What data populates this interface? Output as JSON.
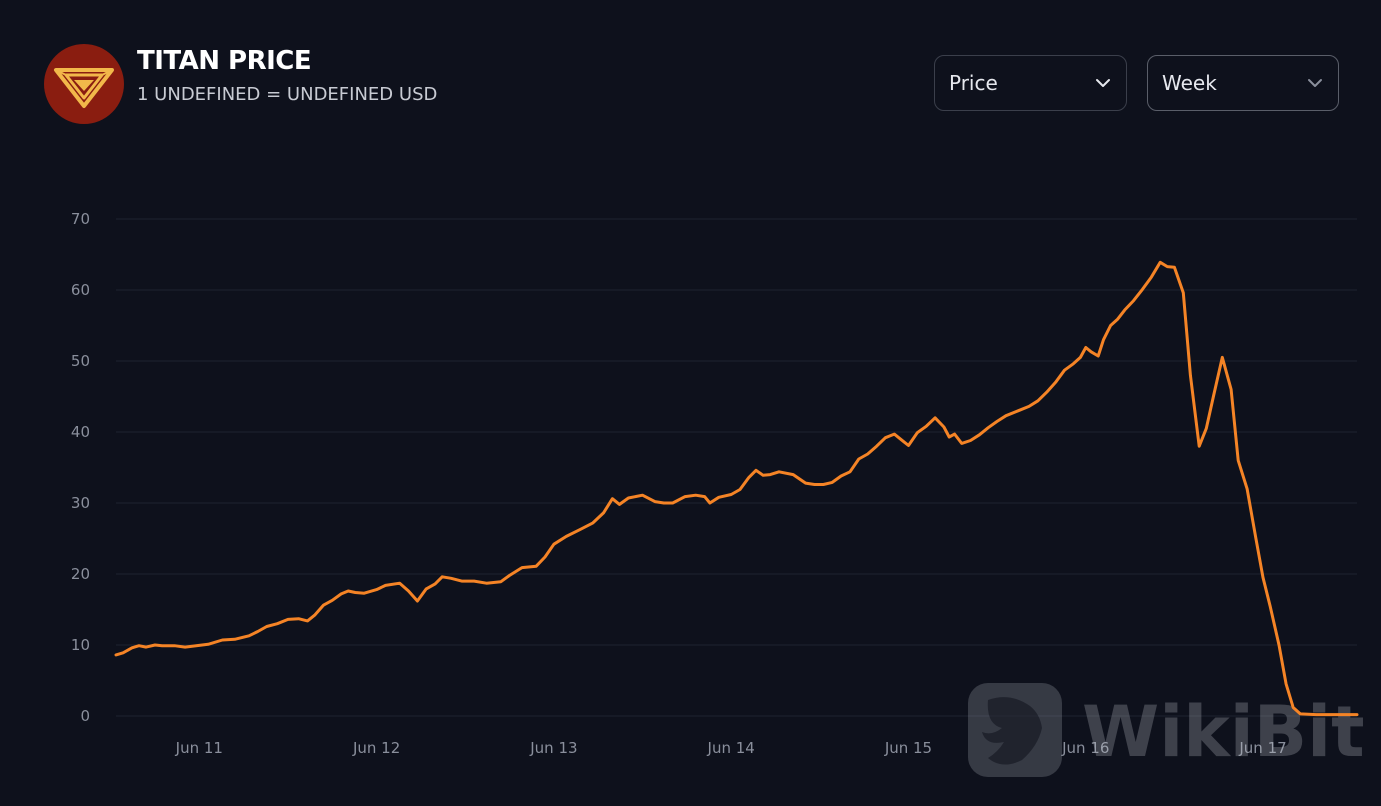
{
  "header": {
    "title": "TITAN PRICE",
    "subtitle": "1 UNDEFINED = UNDEFINED USD",
    "logo_icon": "titan-diamond-logo",
    "logo_bg": "#8a1d10",
    "logo_fg": "#f2b84a"
  },
  "controls": {
    "metric_select": {
      "label": "Price",
      "icon": "chevron-down-icon"
    },
    "range_select": {
      "label": "Week",
      "icon": "chevron-down-icon"
    }
  },
  "watermark": {
    "text": "WikiBit",
    "icon": "wikibit-eagle-icon"
  },
  "colors": {
    "background": "#0e111c",
    "line": "#f58426",
    "grid": "#1e2230",
    "tick_text": "#8a8f9c"
  },
  "chart_data": {
    "type": "line",
    "title": "",
    "xlabel": "",
    "ylabel": "",
    "ylim": [
      0,
      70
    ],
    "xlim": [
      10.53,
      17.53
    ],
    "yticks": [
      0,
      10,
      20,
      30,
      40,
      50,
      60,
      70
    ],
    "xticks": [
      {
        "label": "Jun 11",
        "value": 11
      },
      {
        "label": "Jun 12",
        "value": 12
      },
      {
        "label": "Jun 13",
        "value": 13
      },
      {
        "label": "Jun 14",
        "value": 14
      },
      {
        "label": "Jun 15",
        "value": 15
      },
      {
        "label": "Jun 16",
        "value": 16
      },
      {
        "label": "Jun 17",
        "value": 17
      }
    ],
    "grid": true,
    "series": [
      {
        "name": "",
        "color": "#f58426",
        "points": [
          [
            10.53,
            8.6
          ],
          [
            10.57,
            8.9
          ],
          [
            10.62,
            9.6
          ],
          [
            10.66,
            9.9
          ],
          [
            10.7,
            9.7
          ],
          [
            10.75,
            10.0
          ],
          [
            10.79,
            9.9
          ],
          [
            10.86,
            9.9
          ],
          [
            10.92,
            9.7
          ],
          [
            11.05,
            10.1
          ],
          [
            11.13,
            10.7
          ],
          [
            11.2,
            10.8
          ],
          [
            11.28,
            11.3
          ],
          [
            11.33,
            11.9
          ],
          [
            11.38,
            12.6
          ],
          [
            11.44,
            13.0
          ],
          [
            11.5,
            13.6
          ],
          [
            11.56,
            13.7
          ],
          [
            11.61,
            13.4
          ],
          [
            11.65,
            14.2
          ],
          [
            11.7,
            15.6
          ],
          [
            11.75,
            16.3
          ],
          [
            11.8,
            17.2
          ],
          [
            11.84,
            17.6
          ],
          [
            11.88,
            17.4
          ],
          [
            11.93,
            17.3
          ],
          [
            12.0,
            17.8
          ],
          [
            12.05,
            18.4
          ],
          [
            12.13,
            18.7
          ],
          [
            12.18,
            17.6
          ],
          [
            12.23,
            16.2
          ],
          [
            12.28,
            17.9
          ],
          [
            12.33,
            18.6
          ],
          [
            12.37,
            19.6
          ],
          [
            12.42,
            19.4
          ],
          [
            12.48,
            19.0
          ],
          [
            12.55,
            19.0
          ],
          [
            12.62,
            18.7
          ],
          [
            12.7,
            18.9
          ],
          [
            12.75,
            19.8
          ],
          [
            12.82,
            20.9
          ],
          [
            12.9,
            21.1
          ],
          [
            12.95,
            22.4
          ],
          [
            13.0,
            24.2
          ],
          [
            13.07,
            25.3
          ],
          [
            13.15,
            26.3
          ],
          [
            13.22,
            27.2
          ],
          [
            13.28,
            28.6
          ],
          [
            13.33,
            30.6
          ],
          [
            13.37,
            29.8
          ],
          [
            13.42,
            30.7
          ],
          [
            13.5,
            31.1
          ],
          [
            13.57,
            30.2
          ],
          [
            13.62,
            30.0
          ],
          [
            13.67,
            30.0
          ],
          [
            13.74,
            30.9
          ],
          [
            13.8,
            31.1
          ],
          [
            13.85,
            30.9
          ],
          [
            13.88,
            30.0
          ],
          [
            13.93,
            30.8
          ],
          [
            14.0,
            31.2
          ],
          [
            14.05,
            31.9
          ],
          [
            14.1,
            33.6
          ],
          [
            14.14,
            34.6
          ],
          [
            14.18,
            33.9
          ],
          [
            14.22,
            34.0
          ],
          [
            14.27,
            34.4
          ],
          [
            14.35,
            34.0
          ],
          [
            14.42,
            32.8
          ],
          [
            14.47,
            32.6
          ],
          [
            14.52,
            32.6
          ],
          [
            14.57,
            32.9
          ],
          [
            14.62,
            33.8
          ],
          [
            14.67,
            34.4
          ],
          [
            14.72,
            36.2
          ],
          [
            14.77,
            36.9
          ],
          [
            14.82,
            38.0
          ],
          [
            14.87,
            39.2
          ],
          [
            14.92,
            39.7
          ],
          [
            14.97,
            38.7
          ],
          [
            15.0,
            38.1
          ],
          [
            15.05,
            39.9
          ],
          [
            15.1,
            40.8
          ],
          [
            15.15,
            42.0
          ],
          [
            15.2,
            40.7
          ],
          [
            15.23,
            39.3
          ],
          [
            15.26,
            39.7
          ],
          [
            15.3,
            38.4
          ],
          [
            15.35,
            38.8
          ],
          [
            15.4,
            39.6
          ],
          [
            15.45,
            40.6
          ],
          [
            15.5,
            41.5
          ],
          [
            15.55,
            42.3
          ],
          [
            15.62,
            43.0
          ],
          [
            15.68,
            43.6
          ],
          [
            15.73,
            44.4
          ],
          [
            15.78,
            45.6
          ],
          [
            15.83,
            47.0
          ],
          [
            15.88,
            48.7
          ],
          [
            15.93,
            49.6
          ],
          [
            15.97,
            50.5
          ],
          [
            16.0,
            51.9
          ],
          [
            16.03,
            51.3
          ],
          [
            16.07,
            50.7
          ],
          [
            16.1,
            53.0
          ],
          [
            16.14,
            55.0
          ],
          [
            16.18,
            55.9
          ],
          [
            16.22,
            57.2
          ],
          [
            16.27,
            58.5
          ],
          [
            16.32,
            60.1
          ],
          [
            16.37,
            61.8
          ],
          [
            16.42,
            63.9
          ],
          [
            16.46,
            63.3
          ],
          [
            16.5,
            63.2
          ],
          [
            16.55,
            59.6
          ],
          [
            16.59,
            48.0
          ],
          [
            16.64,
            38.0
          ],
          [
            16.68,
            40.5
          ],
          [
            16.72,
            45.0
          ],
          [
            16.77,
            50.5
          ],
          [
            16.82,
            46.0
          ],
          [
            16.86,
            36.0
          ],
          [
            16.91,
            32.0
          ],
          [
            16.96,
            25.0
          ],
          [
            17.0,
            19.5
          ],
          [
            17.04,
            15.5
          ],
          [
            17.09,
            10.0
          ],
          [
            17.13,
            4.5
          ],
          [
            17.17,
            1.2
          ],
          [
            17.21,
            0.3
          ],
          [
            17.3,
            0.2
          ],
          [
            17.4,
            0.2
          ],
          [
            17.53,
            0.2
          ]
        ]
      }
    ]
  }
}
